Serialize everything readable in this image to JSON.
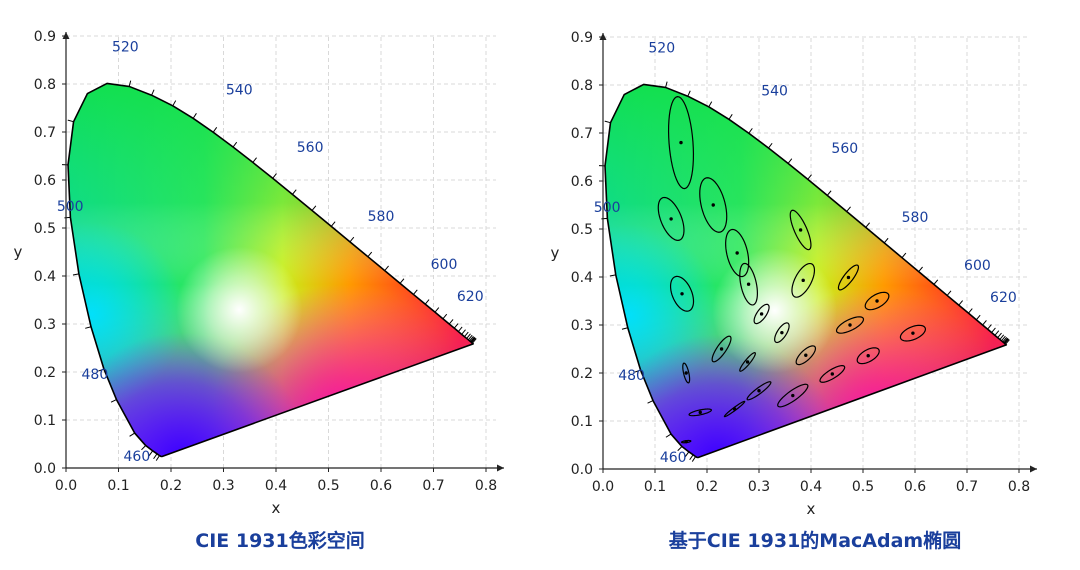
{
  "chart_data": [
    {
      "type": "chromaticity-diagram",
      "caption": "CIE 1931色彩空间",
      "xlabel": "x",
      "ylabel": "y",
      "xlim": [
        0.0,
        0.8
      ],
      "ylim": [
        0.0,
        0.9
      ],
      "xticks": [
        "0.0",
        "0.1",
        "0.2",
        "0.3",
        "0.4",
        "0.5",
        "0.6",
        "0.7",
        "0.8"
      ],
      "yticks": [
        "0.0",
        "0.1",
        "0.2",
        "0.3",
        "0.4",
        "0.5",
        "0.6",
        "0.7",
        "0.8",
        "0.9"
      ],
      "grid": true,
      "wavelength_labels": [
        "460",
        "480",
        "500",
        "520",
        "540",
        "560",
        "580",
        "600",
        "620"
      ]
    },
    {
      "type": "chromaticity-diagram",
      "caption": "基于CIE 1931的MacAdam椭圆",
      "xlabel": "x",
      "ylabel": "y",
      "xlim": [
        0.0,
        0.8
      ],
      "ylim": [
        0.0,
        0.9
      ],
      "xticks": [
        "0.0",
        "0.1",
        "0.2",
        "0.3",
        "0.4",
        "0.5",
        "0.6",
        "0.7",
        "0.8"
      ],
      "yticks": [
        "0.0",
        "0.1",
        "0.2",
        "0.3",
        "0.4",
        "0.5",
        "0.6",
        "0.7",
        "0.8",
        "0.9"
      ],
      "grid": true,
      "wavelength_labels": [
        "460",
        "480",
        "500",
        "520",
        "540",
        "560",
        "580",
        "600",
        "620"
      ],
      "ellipses": [
        {
          "x": 0.16,
          "y": 0.057,
          "a": 0.0009,
          "b": 0.0002,
          "theta": 8
        },
        {
          "x": 0.187,
          "y": 0.118,
          "a": 0.0022,
          "b": 0.0005,
          "theta": 13
        },
        {
          "x": 0.253,
          "y": 0.125,
          "a": 0.0025,
          "b": 0.0003,
          "theta": 39
        },
        {
          "x": 0.15,
          "y": 0.68,
          "a": 0.0096,
          "b": 0.0023,
          "theta": 94
        },
        {
          "x": 0.131,
          "y": 0.521,
          "a": 0.0047,
          "b": 0.002,
          "theta": 110
        },
        {
          "x": 0.212,
          "y": 0.55,
          "a": 0.0058,
          "b": 0.0023,
          "theta": 103
        },
        {
          "x": 0.258,
          "y": 0.45,
          "a": 0.005,
          "b": 0.002,
          "theta": 102
        },
        {
          "x": 0.152,
          "y": 0.365,
          "a": 0.0038,
          "b": 0.0019,
          "theta": 110
        },
        {
          "x": 0.28,
          "y": 0.385,
          "a": 0.0044,
          "b": 0.0015,
          "theta": 101
        },
        {
          "x": 0.38,
          "y": 0.498,
          "a": 0.0044,
          "b": 0.0012,
          "theta": 112
        },
        {
          "x": 0.16,
          "y": 0.2,
          "a": 0.0021,
          "b": 0.0005,
          "theta": 102
        },
        {
          "x": 0.228,
          "y": 0.25,
          "a": 0.0031,
          "b": 0.0009,
          "theta": 58
        },
        {
          "x": 0.305,
          "y": 0.323,
          "a": 0.0023,
          "b": 0.0009,
          "theta": 58
        },
        {
          "x": 0.385,
          "y": 0.393,
          "a": 0.0038,
          "b": 0.0016,
          "theta": 65
        },
        {
          "x": 0.472,
          "y": 0.399,
          "a": 0.0031,
          "b": 0.0009,
          "theta": 55
        },
        {
          "x": 0.527,
          "y": 0.35,
          "a": 0.0026,
          "b": 0.0013,
          "theta": 34
        },
        {
          "x": 0.475,
          "y": 0.3,
          "a": 0.0029,
          "b": 0.0011,
          "theta": 29
        },
        {
          "x": 0.51,
          "y": 0.236,
          "a": 0.0024,
          "b": 0.0012,
          "theta": 33
        },
        {
          "x": 0.596,
          "y": 0.283,
          "a": 0.0026,
          "b": 0.0013,
          "theta": 26
        },
        {
          "x": 0.344,
          "y": 0.284,
          "a": 0.0023,
          "b": 0.0009,
          "theta": 60
        },
        {
          "x": 0.39,
          "y": 0.237,
          "a": 0.0025,
          "b": 0.001,
          "theta": 47
        },
        {
          "x": 0.441,
          "y": 0.198,
          "a": 0.0028,
          "b": 0.0009,
          "theta": 34
        },
        {
          "x": 0.278,
          "y": 0.223,
          "a": 0.0024,
          "b": 0.0005,
          "theta": 53
        },
        {
          "x": 0.3,
          "y": 0.163,
          "a": 0.0029,
          "b": 0.0006,
          "theta": 39
        },
        {
          "x": 0.365,
          "y": 0.153,
          "a": 0.0036,
          "b": 0.001,
          "theta": 38
        }
      ]
    }
  ]
}
